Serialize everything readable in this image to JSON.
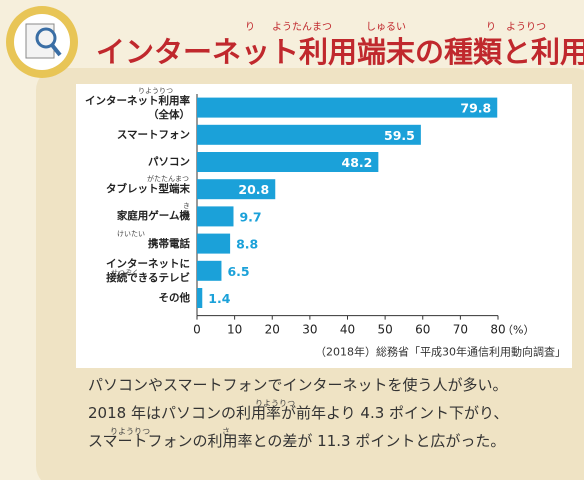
{
  "header": {
    "title": "インターネット利用端末の種類と利用率",
    "title_furigana": [
      "り",
      "ようたんまつ",
      "しゅるい",
      "り",
      "ようりつ"
    ]
  },
  "chart_data": {
    "type": "bar",
    "orientation": "horizontal",
    "categories": [
      "インターネット利用率\n（全体）",
      "スマートフォン",
      "パソコン",
      "タブレット型端末",
      "家庭用ゲーム機",
      "携帯電話",
      "インターネットに\n接続できるテレビ",
      "その他"
    ],
    "category_furigana": [
      "りようりつ",
      null,
      null,
      "がたたんまつ",
      "き",
      "けいたい",
      "せつぞく",
      null
    ],
    "values": [
      79.8,
      59.5,
      48.2,
      20.8,
      9.7,
      8.8,
      6.5,
      1.4
    ],
    "color": "#1ba1d9",
    "xlim": [
      0,
      80
    ],
    "xticks": [
      0,
      10,
      20,
      30,
      40,
      50,
      60,
      70,
      80
    ],
    "x_unit": "（%）",
    "source": "（2018年）総務省「平成30年通信利用動向調査」"
  },
  "caption": {
    "lines": [
      "パソコンやスマートフォンでインターネットを使う人が多い。",
      "2018 年はパソコンの利用率が前年より 4.3 ポイント下がり、",
      "スマートフォンの利用率との差が 11.3 ポイントと広がった。"
    ],
    "furigana": [
      "りようりつ",
      "りようりつ",
      "さ"
    ]
  }
}
